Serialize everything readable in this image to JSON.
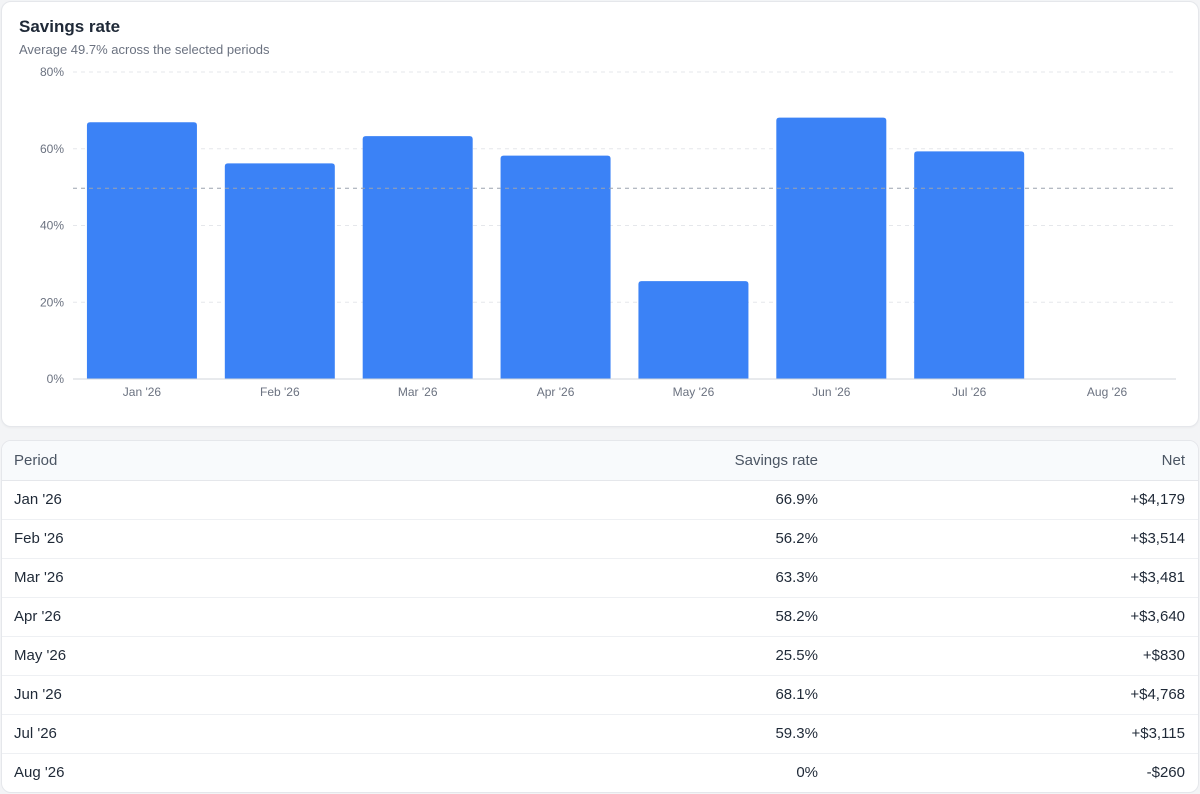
{
  "card": {
    "title": "Savings rate",
    "subtitle": "Average 49.7% across the selected periods"
  },
  "chart_data": {
    "type": "bar",
    "categories": [
      "Jan '26",
      "Feb '26",
      "Mar '26",
      "Apr '26",
      "May '26",
      "Jun '26",
      "Jul '26",
      "Aug '26"
    ],
    "values": [
      66.9,
      56.2,
      63.3,
      58.2,
      25.5,
      68.1,
      59.3,
      0
    ],
    "ylim": [
      0,
      80
    ],
    "yticks": [
      0,
      20,
      40,
      60,
      80
    ],
    "ytick_labels": [
      "0%",
      "20%",
      "40%",
      "60%",
      "80%"
    ],
    "average_line": 49.7,
    "grid": true,
    "bar_color": "#3b82f6"
  },
  "table": {
    "headers": {
      "period": "Period",
      "rate": "Savings rate",
      "net": "Net"
    },
    "rows": [
      {
        "period": "Jan '26",
        "rate": "66.9%",
        "net": "+$4,179"
      },
      {
        "period": "Feb '26",
        "rate": "56.2%",
        "net": "+$3,514"
      },
      {
        "period": "Mar '26",
        "rate": "63.3%",
        "net": "+$3,481"
      },
      {
        "period": "Apr '26",
        "rate": "58.2%",
        "net": "+$3,640"
      },
      {
        "period": "May '26",
        "rate": "25.5%",
        "net": "+$830"
      },
      {
        "period": "Jun '26",
        "rate": "68.1%",
        "net": "+$4,768"
      },
      {
        "period": "Jul '26",
        "rate": "59.3%",
        "net": "+$3,115"
      },
      {
        "period": "Aug '26",
        "rate": "0%",
        "net": "-$260"
      }
    ]
  }
}
